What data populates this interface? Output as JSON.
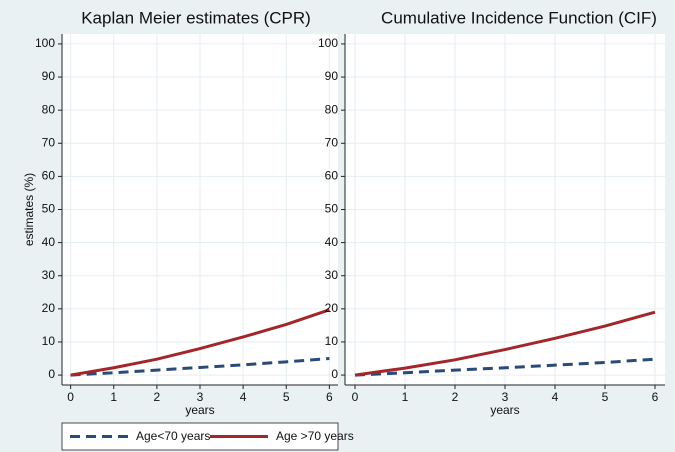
{
  "chart_data": [
    {
      "type": "line",
      "title": "Kaplan Meier estimates (CPR)",
      "y_label": "estimates (%)",
      "x_label": "years",
      "x": [
        0,
        1,
        2,
        3,
        4,
        5,
        6
      ],
      "series": [
        {
          "name": "Age<70 years",
          "color": "#2a4a78",
          "style": "dashed",
          "values": [
            0,
            0.7,
            1.5,
            2.3,
            3.1,
            4.0,
            5.0
          ]
        },
        {
          "name": "Age >70 years",
          "color": "#a3262a",
          "style": "solid",
          "values": [
            0,
            2.2,
            4.8,
            8.0,
            11.5,
            15.3,
            19.7
          ]
        }
      ],
      "xlim": [
        -0.2,
        6.2
      ],
      "xticks": [
        0,
        1,
        2,
        3,
        4,
        5,
        6
      ],
      "ylim": [
        -3,
        103
      ],
      "yticks": [
        0,
        10,
        20,
        30,
        40,
        50,
        60,
        70,
        80,
        90,
        100
      ],
      "grid": true
    },
    {
      "type": "line",
      "title": "Cumulative Incidence Function (CIF)",
      "x_label": "years",
      "x": [
        0,
        1,
        2,
        3,
        4,
        5,
        6
      ],
      "series": [
        {
          "color": "#2a4a78",
          "style": "dashed",
          "values": [
            0,
            0.7,
            1.5,
            2.2,
            3.0,
            3.8,
            4.8
          ]
        },
        {
          "color": "#a3262a",
          "style": "solid",
          "values": [
            0,
            2.1,
            4.6,
            7.7,
            11.1,
            14.8,
            19.0
          ]
        }
      ],
      "xlim": [
        -0.2,
        6.2
      ],
      "xticks": [
        0,
        1,
        2,
        3,
        4,
        5,
        6
      ],
      "ylim": [
        -3,
        103
      ],
      "yticks": [
        0,
        10,
        20,
        30,
        40,
        50,
        60,
        70,
        80,
        90,
        100
      ],
      "grid": true
    }
  ]
}
